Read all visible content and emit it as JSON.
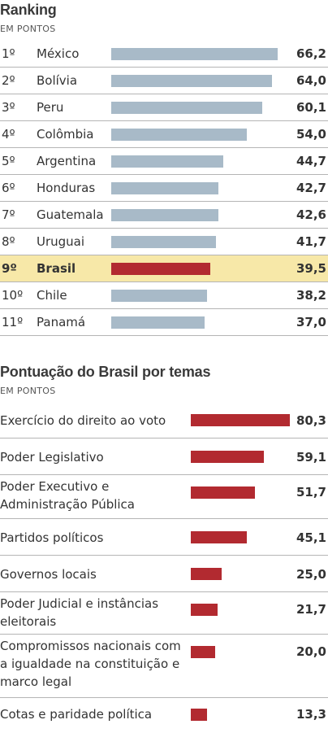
{
  "ranking": {
    "title": "Ranking",
    "subtitle": "EM PONTOS",
    "bar_color": "#a8bac8",
    "highlight_bar_color": "#b22a30",
    "highlight_bg": "#f7e8a8"
  },
  "themes": {
    "title": "Pontuação do Brasil por temas",
    "subtitle": "EM PONTOS",
    "bar_color": "#b22a30"
  },
  "chart_data": [
    {
      "type": "bar",
      "title": "Ranking",
      "subtitle": "EM PONTOS",
      "ranks": [
        "1º",
        "2º",
        "3º",
        "4º",
        "5º",
        "6º",
        "7º",
        "8º",
        "9º",
        "10º",
        "11º"
      ],
      "categories": [
        "México",
        "Bolívia",
        "Peru",
        "Colômbia",
        "Argentina",
        "Honduras",
        "Guatemala",
        "Uruguai",
        "Brasil",
        "Chile",
        "Panamá"
      ],
      "values": [
        66.2,
        64.0,
        60.1,
        54.0,
        44.7,
        42.7,
        42.6,
        41.7,
        39.5,
        38.2,
        37.0
      ],
      "value_labels": [
        "66,2",
        "64,0",
        "60,1",
        "54,0",
        "44,7",
        "42,7",
        "42,6",
        "41,7",
        "39,5",
        "38,2",
        "37,0"
      ],
      "highlight": "Brasil"
    },
    {
      "type": "bar",
      "title": "Pontuação do Brasil por temas",
      "subtitle": "EM PONTOS",
      "categories": [
        "Exercício do direito ao voto",
        "Poder Legislativo",
        "Poder Executivo e Administração Pública",
        "Partidos políticos",
        "Governos locais",
        "Poder Judicial e instâncias eleitorais",
        "Compromissos nacionais com a igualdade na constituição e marco legal",
        "Cotas e paridade política"
      ],
      "values": [
        80.3,
        59.1,
        51.7,
        45.1,
        25.0,
        21.7,
        20.0,
        13.3
      ],
      "value_labels": [
        "80,3",
        "59,1",
        "51,7",
        "45,1",
        "25,0",
        "21,7",
        "20,0",
        "13,3"
      ]
    }
  ]
}
